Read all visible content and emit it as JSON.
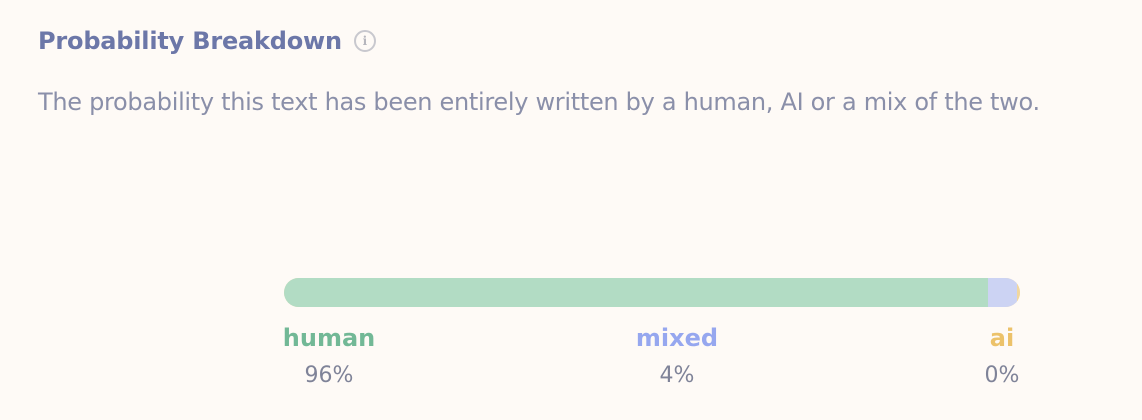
{
  "header": {
    "title": "Probability Breakdown",
    "info_icon": "info-icon"
  },
  "description": "The probability this text has been entirely written by a human, AI or a mix of the two.",
  "breakdown": {
    "human": {
      "label": "human",
      "value": "96%",
      "fraction": 0.96,
      "color": "#b2dcc4"
    },
    "mixed": {
      "label": "mixed",
      "value": "4%",
      "fraction": 0.04,
      "color": "#ccd3f3"
    },
    "ai": {
      "label": "ai",
      "value": "0%",
      "fraction": 0.004,
      "color": "#f1d79e"
    }
  }
}
